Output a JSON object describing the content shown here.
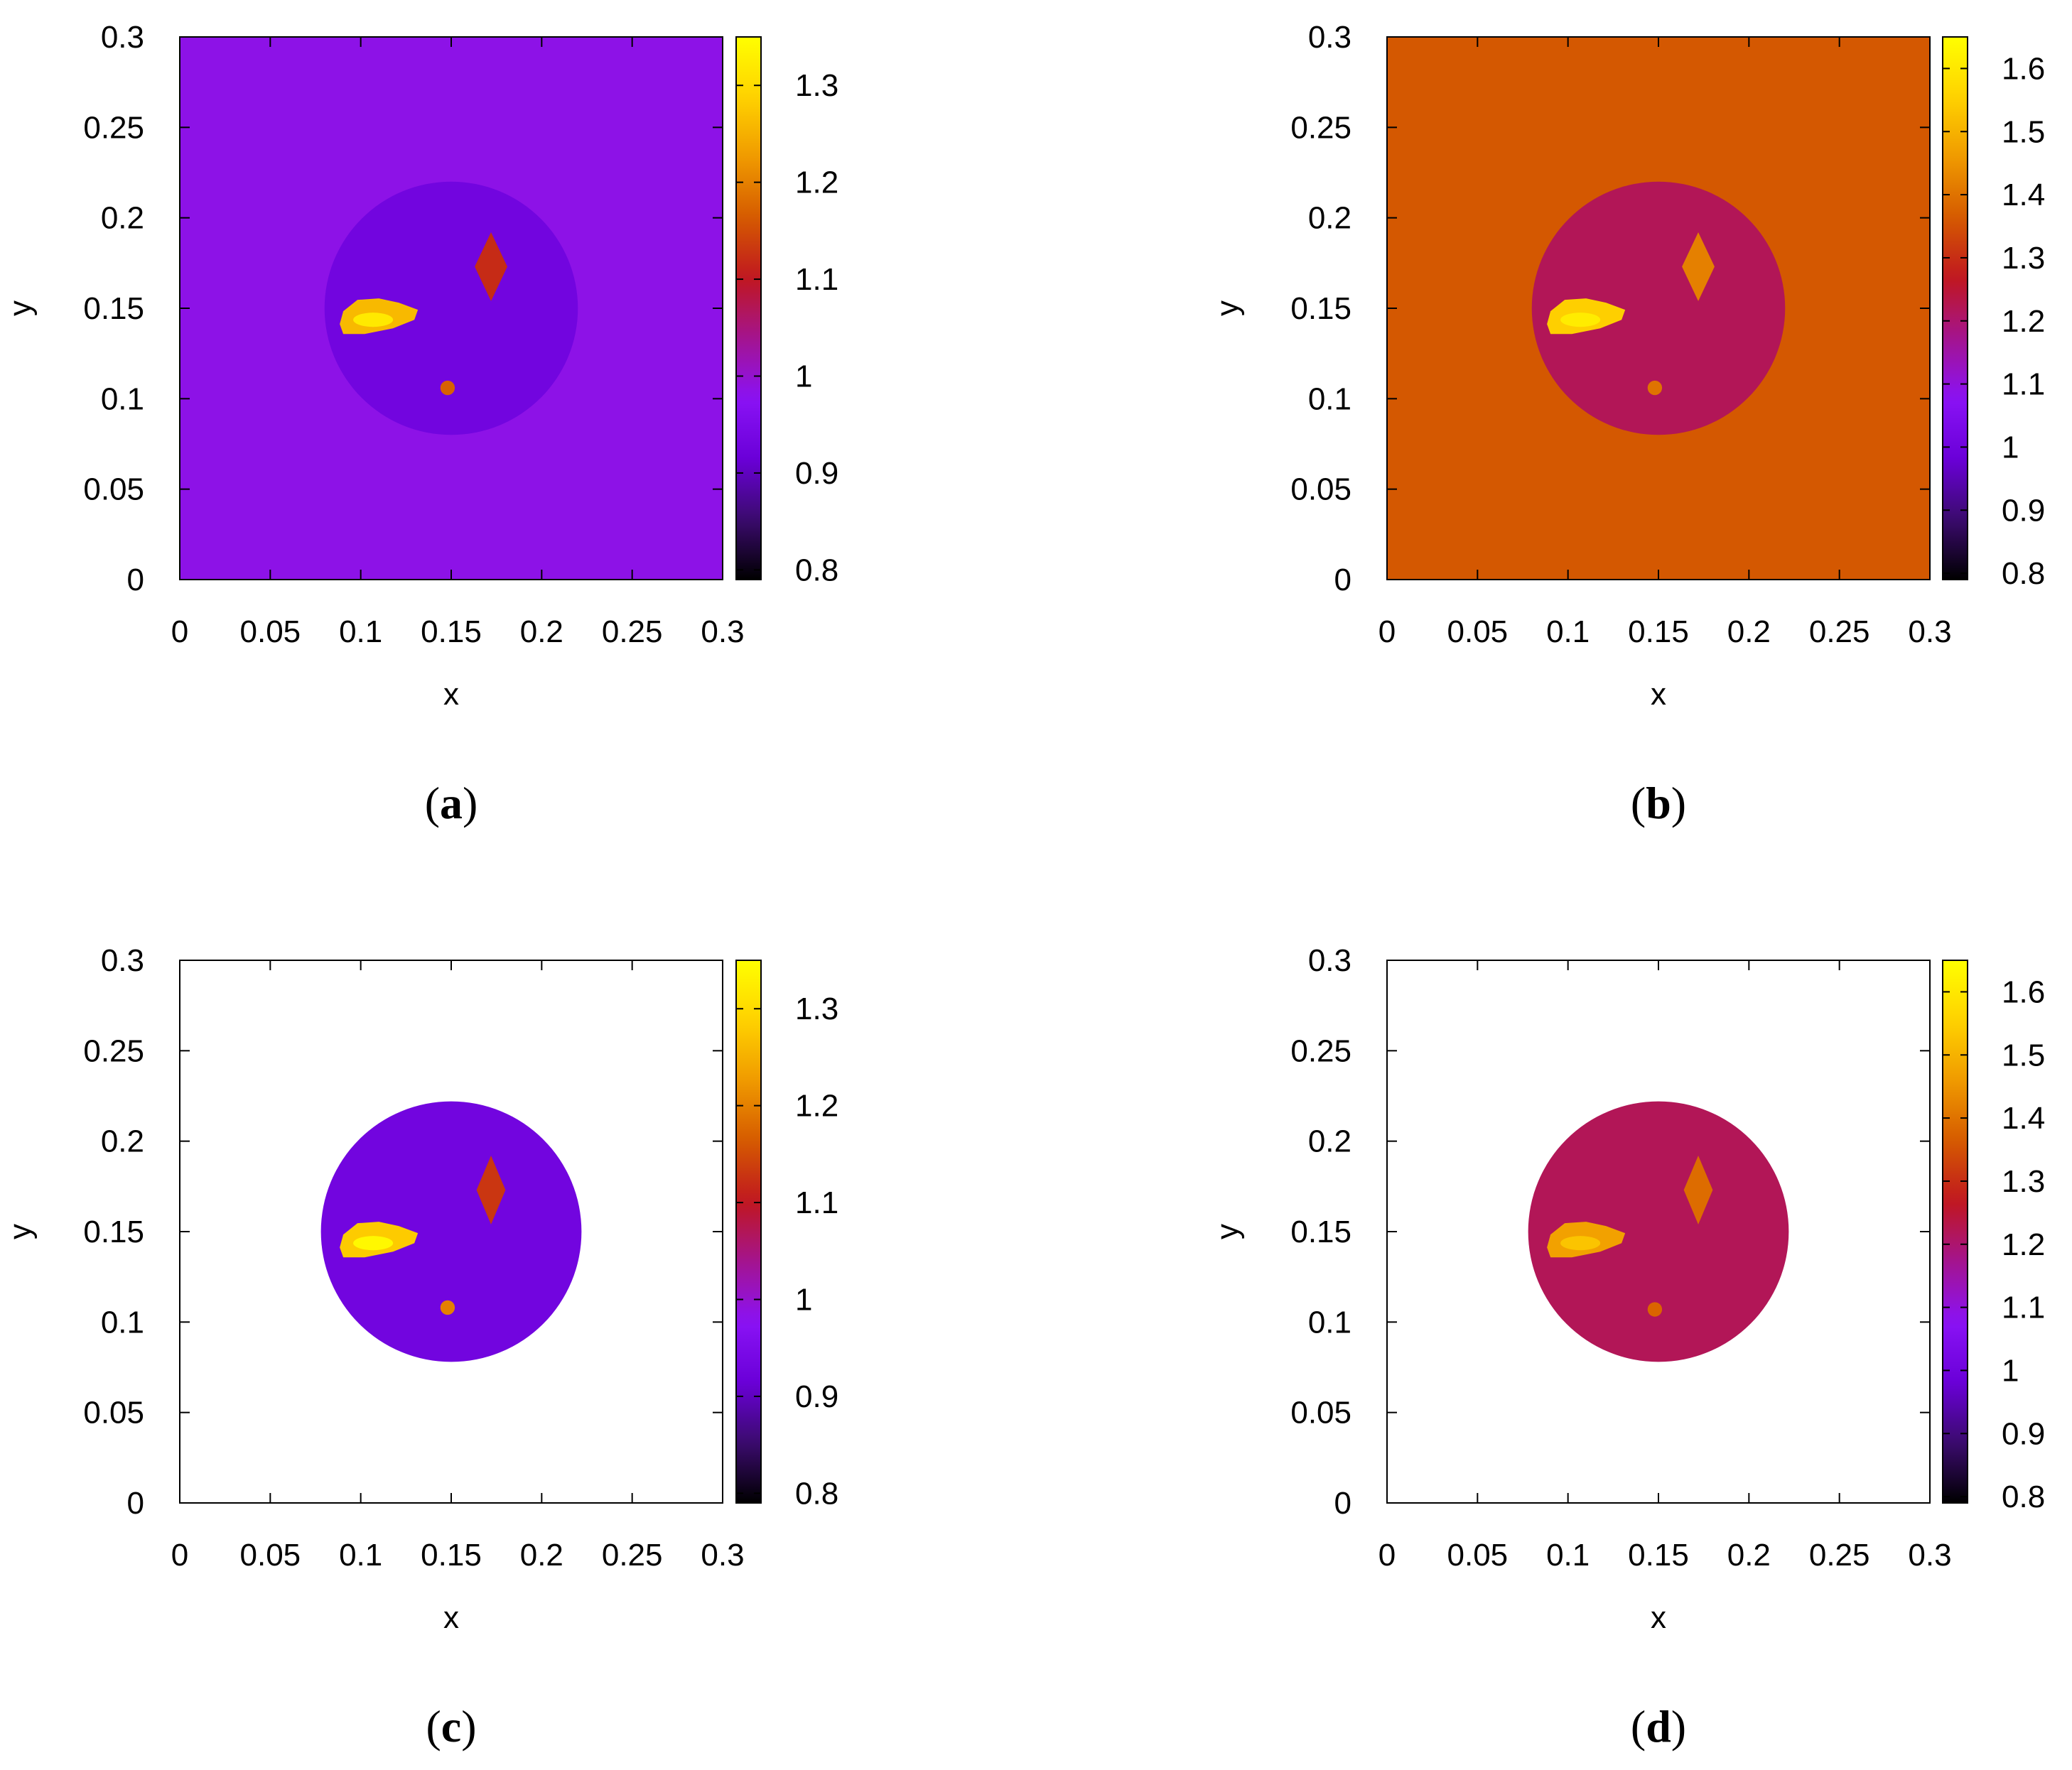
{
  "chart_data": [
    {
      "type": "heatmap",
      "panel_label": "a",
      "xlabel": "x",
      "ylabel": "y",
      "xlim": [
        0,
        0.3
      ],
      "ylim": [
        0,
        0.3
      ],
      "x_ticks": [
        "0",
        "0.05",
        "0.1",
        "0.15",
        "0.2",
        "0.25",
        "0.3"
      ],
      "y_ticks": [
        "0",
        "0.05",
        "0.1",
        "0.15",
        "0.2",
        "0.25",
        "0.3"
      ],
      "colorbar": {
        "range": [
          0.79,
          1.35
        ],
        "ticks": [
          "0.8",
          "0.9",
          "1",
          "1.1",
          "1.2",
          "1.3"
        ]
      },
      "background_value": 0.985,
      "regions": [
        {
          "kind": "disk",
          "center": [
            0.15,
            0.15
          ],
          "radius": 0.07,
          "value": 0.93
        },
        {
          "kind": "diamond",
          "center": [
            0.172,
            0.173
          ],
          "half_width": 0.009,
          "half_height": 0.019,
          "value": 1.12
        },
        {
          "kind": "blob",
          "center": [
            0.11,
            0.146
          ],
          "value": 1.26
        },
        {
          "kind": "spot",
          "center": [
            0.148,
            0.106
          ],
          "radius": 0.004,
          "value": 1.17
        }
      ]
    },
    {
      "type": "heatmap",
      "panel_label": "b",
      "xlabel": "x",
      "ylabel": "y",
      "xlim": [
        0,
        0.3
      ],
      "ylim": [
        0,
        0.3
      ],
      "x_ticks": [
        "0",
        "0.05",
        "0.1",
        "0.15",
        "0.2",
        "0.25",
        "0.3"
      ],
      "y_ticks": [
        "0",
        "0.05",
        "0.1",
        "0.15",
        "0.2",
        "0.25",
        "0.3"
      ],
      "colorbar": {
        "range": [
          0.79,
          1.65
        ],
        "ticks": [
          "0.8",
          "0.9",
          "1",
          "1.1",
          "1.2",
          "1.3",
          "1.4",
          "1.5",
          "1.6"
        ]
      },
      "background_value": 1.36,
      "regions": [
        {
          "kind": "disk",
          "center": [
            0.15,
            0.15
          ],
          "radius": 0.07,
          "value": 1.22
        },
        {
          "kind": "diamond",
          "center": [
            0.172,
            0.173
          ],
          "half_width": 0.009,
          "half_height": 0.019,
          "value": 1.42
        },
        {
          "kind": "blob",
          "center": [
            0.11,
            0.146
          ],
          "value": 1.55
        },
        {
          "kind": "spot",
          "center": [
            0.148,
            0.106
          ],
          "radius": 0.004,
          "value": 1.4
        }
      ]
    },
    {
      "type": "heatmap",
      "panel_label": "c",
      "xlabel": "x",
      "ylabel": "y",
      "xlim": [
        0,
        0.3
      ],
      "ylim": [
        0,
        0.3
      ],
      "x_ticks": [
        "0",
        "0.05",
        "0.1",
        "0.15",
        "0.2",
        "0.25",
        "0.3"
      ],
      "y_ticks": [
        "0",
        "0.05",
        "0.1",
        "0.15",
        "0.2",
        "0.25",
        "0.3"
      ],
      "colorbar": {
        "range": [
          0.79,
          1.35
        ],
        "ticks": [
          "0.8",
          "0.9",
          "1",
          "1.1",
          "1.2",
          "1.3"
        ]
      },
      "background_value": null,
      "regions": [
        {
          "kind": "disk",
          "center": [
            0.15,
            0.15
          ],
          "radius": 0.072,
          "value": 0.93
        },
        {
          "kind": "diamond",
          "center": [
            0.172,
            0.173
          ],
          "half_width": 0.008,
          "half_height": 0.019,
          "value": 1.13
        },
        {
          "kind": "blob",
          "center": [
            0.11,
            0.146
          ],
          "value": 1.28
        },
        {
          "kind": "spot",
          "center": [
            0.148,
            0.108
          ],
          "radius": 0.004,
          "value": 1.2
        }
      ]
    },
    {
      "type": "heatmap",
      "panel_label": "d",
      "xlabel": "x",
      "ylabel": "y",
      "xlim": [
        0,
        0.3
      ],
      "ylim": [
        0,
        0.3
      ],
      "x_ticks": [
        "0",
        "0.05",
        "0.1",
        "0.15",
        "0.2",
        "0.25",
        "0.3"
      ],
      "y_ticks": [
        "0",
        "0.05",
        "0.1",
        "0.15",
        "0.2",
        "0.25",
        "0.3"
      ],
      "colorbar": {
        "range": [
          0.79,
          1.65
        ],
        "ticks": [
          "0.8",
          "0.9",
          "1",
          "1.1",
          "1.2",
          "1.3",
          "1.4",
          "1.5",
          "1.6"
        ]
      },
      "background_value": null,
      "regions": [
        {
          "kind": "disk",
          "center": [
            0.15,
            0.15
          ],
          "radius": 0.072,
          "value": 1.22
        },
        {
          "kind": "diamond",
          "center": [
            0.172,
            0.173
          ],
          "half_width": 0.008,
          "half_height": 0.019,
          "value": 1.39
        },
        {
          "kind": "blob",
          "center": [
            0.11,
            0.146
          ],
          "value": 1.47
        },
        {
          "kind": "spot",
          "center": [
            0.148,
            0.107
          ],
          "radius": 0.004,
          "value": 1.38
        }
      ]
    }
  ],
  "colormap": {
    "name": "gnuplot",
    "stops": [
      "#000000",
      "#3b0b6e",
      "#6a00d8",
      "#8a12f5",
      "#a4148f",
      "#c0171f",
      "#d55a00",
      "#f09a00",
      "#ffd200",
      "#ffff00"
    ]
  }
}
